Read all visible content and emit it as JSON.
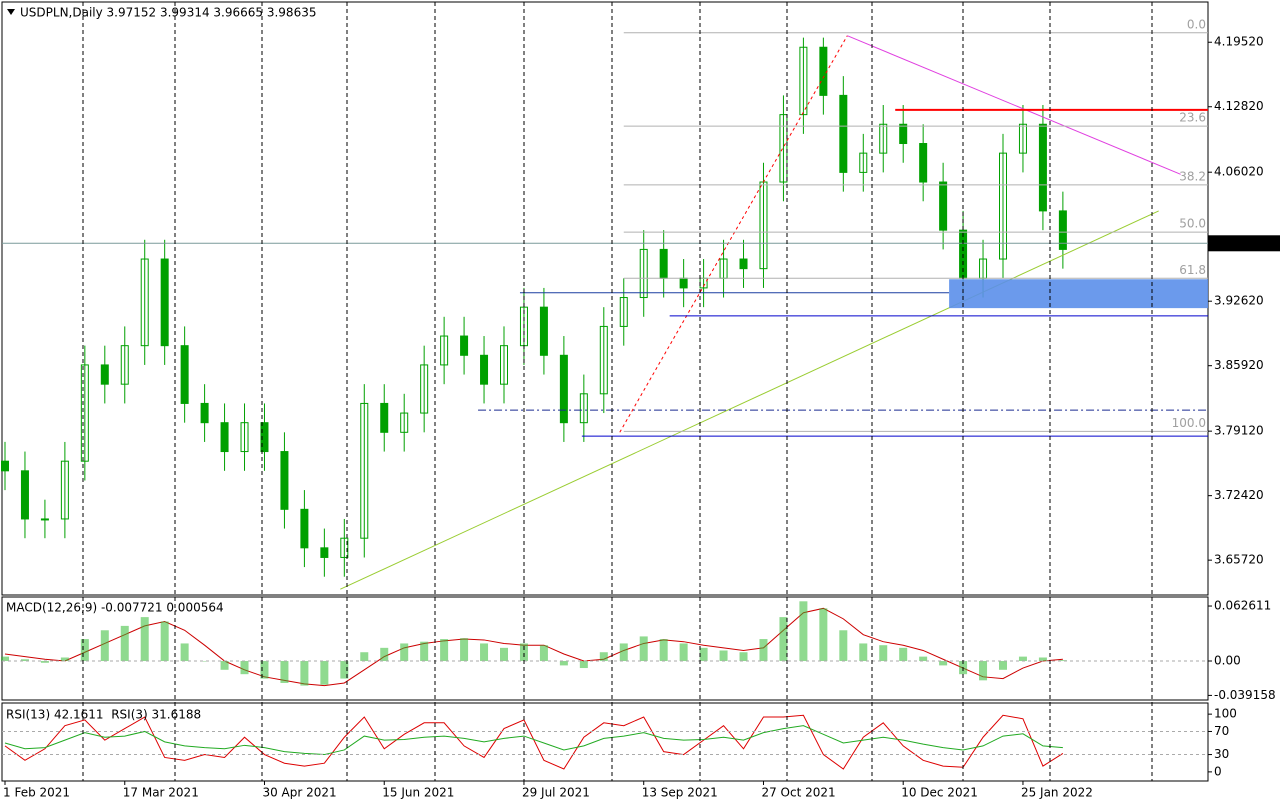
{
  "chart_data": {
    "type": "candlestick",
    "title": "USDPLN,Daily 3.97152 3.99314 3.96665 3.98635",
    "color": "#00a000",
    "categories": [
      "1 Feb 2021",
      null,
      null,
      null,
      null,
      null,
      "17 Mar 2021",
      null,
      null,
      null,
      null,
      null,
      null,
      "30 Apr 2021",
      null,
      null,
      null,
      null,
      null,
      "15 Jun 2021",
      null,
      null,
      null,
      null,
      null,
      null,
      "29 Jul 2021",
      null,
      null,
      null,
      null,
      null,
      "13 Sep 2021",
      null,
      null,
      null,
      null,
      null,
      "27 Oct 2021",
      null,
      null,
      null,
      null,
      null,
      null,
      "10 Dec 2021",
      null,
      null,
      null,
      null,
      null,
      "25 Jan 2022",
      null,
      null
    ],
    "open": [
      3.76,
      3.75,
      3.7,
      3.7,
      3.76,
      3.86,
      3.84,
      3.88,
      3.97,
      3.88,
      3.82,
      3.8,
      3.77,
      3.8,
      3.77,
      3.71,
      3.67,
      3.66,
      3.68,
      3.82,
      3.79,
      3.81,
      3.86,
      3.89,
      3.87,
      3.84,
      3.88,
      3.92,
      3.87,
      3.8,
      3.83,
      3.9,
      3.93,
      3.98,
      3.95,
      3.94,
      3.95,
      3.97,
      3.96,
      4.05,
      4.12,
      4.19,
      4.14,
      4.06,
      4.08,
      4.11,
      4.09,
      4.05,
      4.0,
      3.95,
      3.97,
      4.08,
      4.11,
      4.02
    ],
    "high": [
      3.78,
      3.77,
      3.72,
      3.78,
      3.88,
      3.88,
      3.9,
      3.99,
      3.99,
      3.9,
      3.84,
      3.82,
      3.82,
      3.82,
      3.79,
      3.73,
      3.69,
      3.7,
      3.84,
      3.84,
      3.83,
      3.88,
      3.91,
      3.91,
      3.89,
      3.9,
      3.94,
      3.94,
      3.89,
      3.85,
      3.92,
      3.95,
      4.0,
      4.0,
      3.97,
      3.97,
      3.99,
      3.99,
      4.07,
      4.14,
      4.2,
      4.2,
      4.16,
      4.1,
      4.13,
      4.13,
      4.11,
      4.07,
      4.02,
      3.99,
      4.1,
      4.13,
      4.13,
      4.04
    ],
    "low": [
      3.73,
      3.68,
      3.68,
      3.68,
      3.74,
      3.82,
      3.82,
      3.86,
      3.86,
      3.8,
      3.78,
      3.75,
      3.75,
      3.75,
      3.69,
      3.65,
      3.64,
      3.64,
      3.66,
      3.77,
      3.77,
      3.79,
      3.84,
      3.85,
      3.82,
      3.82,
      3.86,
      3.85,
      3.78,
      3.78,
      3.81,
      3.88,
      3.91,
      3.93,
      3.92,
      3.92,
      3.93,
      3.94,
      3.94,
      4.03,
      4.1,
      4.12,
      4.04,
      4.04,
      4.06,
      4.07,
      4.03,
      3.98,
      3.93,
      3.93,
      3.95,
      4.06,
      4.0,
      3.96
    ],
    "close": [
      3.75,
      3.7,
      3.7,
      3.76,
      3.86,
      3.84,
      3.88,
      3.97,
      3.88,
      3.82,
      3.8,
      3.77,
      3.8,
      3.77,
      3.71,
      3.67,
      3.66,
      3.68,
      3.82,
      3.79,
      3.81,
      3.86,
      3.89,
      3.87,
      3.84,
      3.88,
      3.92,
      3.87,
      3.8,
      3.83,
      3.9,
      3.93,
      3.98,
      3.95,
      3.94,
      3.95,
      3.97,
      3.96,
      4.05,
      4.12,
      4.19,
      4.14,
      4.06,
      4.08,
      4.11,
      4.09,
      4.05,
      4.0,
      3.95,
      3.97,
      4.08,
      4.11,
      4.02,
      3.98
    ],
    "ylim": [
      3.621,
      4.237
    ],
    "yticks": [
      {
        "value": 4.1952,
        "label": "4.19520"
      },
      {
        "value": 4.1282,
        "label": "4.12820"
      },
      {
        "value": 4.0602,
        "label": "4.06020"
      },
      {
        "value": 3.9262,
        "label": "3.92620"
      },
      {
        "value": 3.8592,
        "label": "3.85920"
      },
      {
        "value": 3.7912,
        "label": "3.79120"
      },
      {
        "value": 3.7242,
        "label": "3.72420"
      },
      {
        "value": 3.6572,
        "label": "3.65720"
      }
    ],
    "last_price": {
      "value": 3.98635,
      "label": "3.98635"
    },
    "fib": {
      "from": 31,
      "levels": [
        {
          "value": 0,
          "label": "0.0"
        },
        {
          "value": 23.6,
          "label": "23.6"
        },
        {
          "value": 38.2,
          "label": "38.2"
        },
        {
          "value": 50,
          "label": "50.0"
        },
        {
          "value": 61.8,
          "label": "61.8"
        },
        {
          "value": 100,
          "label": "100.0"
        }
      ],
      "prices": [
        4.205,
        4.108,
        4.047,
        3.998,
        3.95,
        3.791
      ]
    },
    "hlines": [
      {
        "price": 4.125,
        "from": 44.6,
        "color": "#ff0000",
        "style": "solid"
      },
      {
        "price": 3.935,
        "from": 25.8,
        "to": 47.3,
        "color": "#1a3fa0",
        "style": "solid"
      },
      {
        "price": 3.911,
        "from": 33.3,
        "color": "#0000cc",
        "style": "solid"
      },
      {
        "price": 3.813,
        "from": 23.7,
        "color": "#1a2a90",
        "style": "dashdot"
      },
      {
        "price": 3.786,
        "from": 28.9,
        "color": "#0000cc",
        "style": "solid"
      }
    ],
    "zone": {
      "from": 47.3,
      "low": 3.919,
      "high": 3.949,
      "color": "#5b8fea"
    },
    "trendlines": [
      {
        "x": [
          16.8,
          57.8
        ],
        "y": [
          3.627,
          4.02
        ],
        "color": "#9acd32",
        "style": "solid"
      },
      {
        "x": [
          42.2,
          58.9
        ],
        "y": [
          4.202,
          4.058
        ],
        "color": "#e040e0",
        "style": "solid"
      },
      {
        "x": [
          30.8,
          42.2
        ],
        "y": [
          3.79,
          4.202
        ],
        "color": "#ff0000",
        "style": "dotted"
      }
    ],
    "macd": {
      "label": "MACD(12,26,9) -0.007721 0.000564",
      "ylim": [
        -0.0444,
        0.0729
      ],
      "yticks": [
        0.062611,
        {
          "value": 0,
          "label": "0.00"
        },
        -0.039158
      ],
      "histogram": {
        "color": "#33bb33",
        "values": [
          0.005,
          0.002,
          -0.002,
          0.004,
          0.025,
          0.035,
          0.04,
          0.05,
          0.045,
          0.02,
          0.0,
          -0.01,
          -0.015,
          -0.02,
          -0.025,
          -0.028,
          -0.027,
          -0.02,
          0.01,
          0.015,
          0.02,
          0.022,
          0.025,
          0.026,
          0.02,
          0.015,
          0.02,
          0.018,
          -0.005,
          -0.008,
          0.01,
          0.02,
          0.028,
          0.025,
          0.02,
          0.015,
          0.012,
          0.01,
          0.025,
          0.05,
          0.068,
          0.06,
          0.035,
          0.02,
          0.018,
          0.015,
          0.005,
          -0.005,
          -0.015,
          -0.022,
          -0.01,
          0.005,
          0.004,
          0.001
        ]
      },
      "signal": {
        "color": "#cc0000",
        "values": [
          0.008,
          0.005,
          0.002,
          0.0,
          0.01,
          0.02,
          0.03,
          0.04,
          0.045,
          0.035,
          0.018,
          0.0,
          -0.01,
          -0.018,
          -0.022,
          -0.026,
          -0.028,
          -0.025,
          -0.01,
          0.005,
          0.015,
          0.02,
          0.023,
          0.025,
          0.024,
          0.02,
          0.018,
          0.018,
          0.008,
          0.0,
          0.002,
          0.012,
          0.02,
          0.024,
          0.022,
          0.018,
          0.015,
          0.012,
          0.015,
          0.035,
          0.055,
          0.06,
          0.048,
          0.03,
          0.022,
          0.018,
          0.012,
          0.002,
          -0.008,
          -0.018,
          -0.02,
          -0.008,
          0.0,
          0.002
        ]
      }
    },
    "rsi": {
      "label": "RSI(13) 42.1611  RSI(3) 31.6188",
      "ylim": [
        -15.8,
        119.3
      ],
      "yticks": [
        100,
        70,
        30,
        0
      ],
      "levels": [
        70,
        30
      ],
      "series": [
        {
          "name": "RSI(13)",
          "color": "#22aa22",
          "values": [
            50,
            40,
            42,
            55,
            68,
            60,
            62,
            70,
            52,
            45,
            42,
            40,
            46,
            42,
            35,
            32,
            30,
            38,
            62,
            55,
            56,
            60,
            62,
            58,
            52,
            58,
            62,
            50,
            38,
            45,
            58,
            62,
            68,
            58,
            55,
            56,
            60,
            55,
            68,
            75,
            80,
            65,
            50,
            55,
            60,
            55,
            48,
            42,
            38,
            45,
            62,
            66,
            45,
            42
          ]
        },
        {
          "name": "RSI(3)",
          "color": "#dd0000",
          "values": [
            45,
            20,
            40,
            80,
            90,
            55,
            75,
            95,
            25,
            20,
            30,
            25,
            60,
            30,
            15,
            10,
            15,
            60,
            95,
            40,
            65,
            85,
            85,
            45,
            25,
            75,
            90,
            20,
            5,
            60,
            85,
            80,
            95,
            35,
            30,
            55,
            80,
            40,
            95,
            95,
            98,
            30,
            5,
            60,
            85,
            45,
            20,
            10,
            8,
            60,
            98,
            92,
            10,
            32
          ]
        }
      ]
    }
  }
}
